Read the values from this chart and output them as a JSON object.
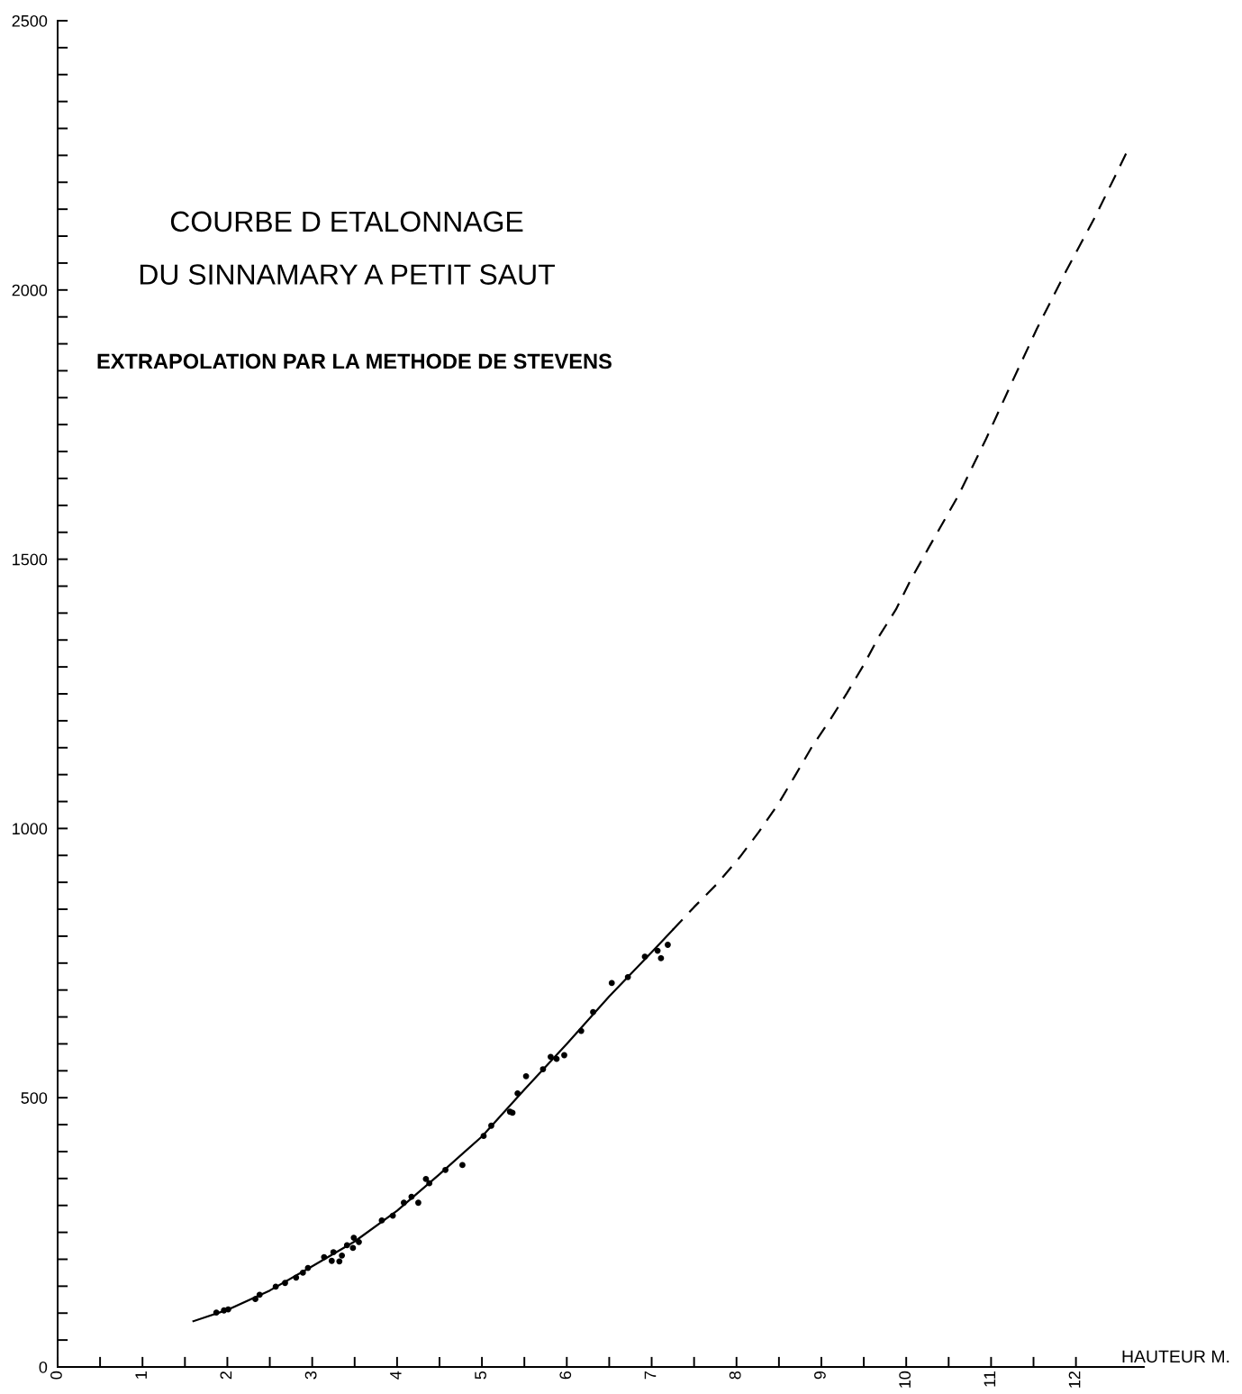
{
  "chart_data": {
    "type": "scatter",
    "title": "COURBE D ETALONNAGE\nDU SINNAMARY A PETIT SAUT",
    "subtitle": "EXTRAPOLATION PAR LA METHODE DE STEVENS",
    "xlabel": "HAUTEUR M.",
    "xlim": [
      0,
      12.8
    ],
    "ylim": [
      0,
      2500
    ],
    "xticks": [
      0,
      {
        "value": 0.5,
        "label": null
      },
      1,
      {
        "value": 1.5,
        "label": null
      },
      2,
      {
        "value": 2.5,
        "label": null
      },
      3,
      {
        "value": 3.5,
        "label": null
      },
      4,
      {
        "value": 4.5,
        "label": null
      },
      5,
      {
        "value": 5.5,
        "label": null
      },
      6,
      {
        "value": 6.5,
        "label": null
      },
      7,
      {
        "value": 7.5,
        "label": null
      },
      8,
      {
        "value": 8.5,
        "label": null
      },
      9,
      {
        "value": 9.5,
        "label": null
      },
      10,
      {
        "value": 10.5,
        "label": null
      },
      11,
      {
        "value": 11.5,
        "label": null
      },
      12
    ],
    "yticks": [
      0,
      {
        "value": 50,
        "label": null
      },
      {
        "value": 100,
        "label": null
      },
      {
        "value": 150,
        "label": null
      },
      {
        "value": 200,
        "label": null
      },
      {
        "value": 250,
        "label": null
      },
      {
        "value": 300,
        "label": null
      },
      {
        "value": 350,
        "label": null
      },
      {
        "value": 400,
        "label": null
      },
      {
        "value": 450,
        "label": null
      },
      500,
      {
        "value": 550,
        "label": null
      },
      {
        "value": 600,
        "label": null
      },
      {
        "value": 650,
        "label": null
      },
      {
        "value": 700,
        "label": null
      },
      {
        "value": 750,
        "label": null
      },
      {
        "value": 800,
        "label": null
      },
      {
        "value": 850,
        "label": null
      },
      {
        "value": 900,
        "label": null
      },
      {
        "value": 950,
        "label": null
      },
      1000,
      {
        "value": 1050,
        "label": null
      },
      {
        "value": 1100,
        "label": null
      },
      {
        "value": 1150,
        "label": null
      },
      {
        "value": 1200,
        "label": null
      },
      {
        "value": 1250,
        "label": null
      },
      {
        "value": 1300,
        "label": null
      },
      {
        "value": 1350,
        "label": null
      },
      {
        "value": 1400,
        "label": null
      },
      {
        "value": 1450,
        "label": null
      },
      1500,
      {
        "value": 1550,
        "label": null
      },
      {
        "value": 1600,
        "label": null
      },
      {
        "value": 1650,
        "label": null
      },
      {
        "value": 1700,
        "label": null
      },
      {
        "value": 1750,
        "label": null
      },
      {
        "value": 1800,
        "label": null
      },
      {
        "value": 1850,
        "label": null
      },
      {
        "value": 1900,
        "label": null
      },
      {
        "value": 1950,
        "label": null
      },
      2000,
      {
        "value": 2050,
        "label": null
      },
      {
        "value": 2100,
        "label": null
      },
      {
        "value": 2150,
        "label": null
      },
      {
        "value": 2200,
        "label": null
      },
      {
        "value": 2250,
        "label": null
      },
      {
        "value": 2300,
        "label": null
      },
      {
        "value": 2350,
        "label": null
      },
      {
        "value": 2400,
        "label": null
      },
      {
        "value": 2450,
        "label": null
      },
      2500
    ],
    "series": [
      {
        "color": "#000000",
        "marker": "circle",
        "x": [
          1.87,
          1.96,
          2.01,
          2.33,
          2.38,
          2.57,
          2.68,
          2.81,
          2.89,
          2.95,
          3.14,
          3.23,
          3.25,
          3.32,
          3.35,
          3.41,
          3.48,
          3.49,
          3.55,
          3.82,
          3.95,
          4.08,
          4.17,
          4.25,
          4.34,
          4.38,
          4.57,
          4.77,
          5.02,
          5.11,
          5.33,
          5.36,
          5.42,
          5.52,
          5.72,
          5.81,
          5.88,
          5.97,
          6.17,
          6.31,
          6.53,
          6.72,
          6.92,
          7.07,
          7.11,
          7.19
        ],
        "values": [
          101,
          105,
          107,
          126,
          134,
          149,
          156,
          166,
          175,
          184,
          204,
          197,
          213,
          196,
          207,
          226,
          221,
          240,
          232,
          272,
          281,
          305,
          316,
          305,
          349,
          341,
          366,
          375,
          429,
          448,
          474,
          472,
          508,
          540,
          553,
          576,
          572,
          579,
          624,
          659,
          713,
          724,
          762,
          773,
          759,
          784
        ]
      },
      {
        "type": "line",
        "color": "#000000",
        "line_style": "solid",
        "marker": "none",
        "x": [
          1.6,
          2.0,
          2.5,
          3.0,
          3.5,
          4.0,
          4.5,
          5.0,
          5.5,
          6.0,
          6.5,
          7.0,
          7.25
        ],
        "values": [
          85,
          106,
          142,
          187,
          233,
          290,
          358,
          428,
          515,
          600,
          688,
          770,
          812
        ]
      },
      {
        "type": "line",
        "color": "#000000",
        "line_style": "dashed",
        "marker": "none",
        "x": [
          7.25,
          7.5,
          7.77,
          8.04,
          8.26,
          8.49,
          8.69,
          8.89,
          9.1,
          9.3,
          9.5,
          9.68,
          9.88,
          10.06,
          10.26,
          10.61,
          10.94,
          11.25,
          11.54,
          11.88,
          12.24,
          12.59
        ],
        "values": [
          812,
          854,
          897,
          947,
          993,
          1045,
          1098,
          1152,
          1201,
          1251,
          1304,
          1357,
          1407,
          1464,
          1520,
          1617,
          1723,
          1830,
          1928,
          2034,
          2140,
          2253
        ]
      }
    ]
  }
}
